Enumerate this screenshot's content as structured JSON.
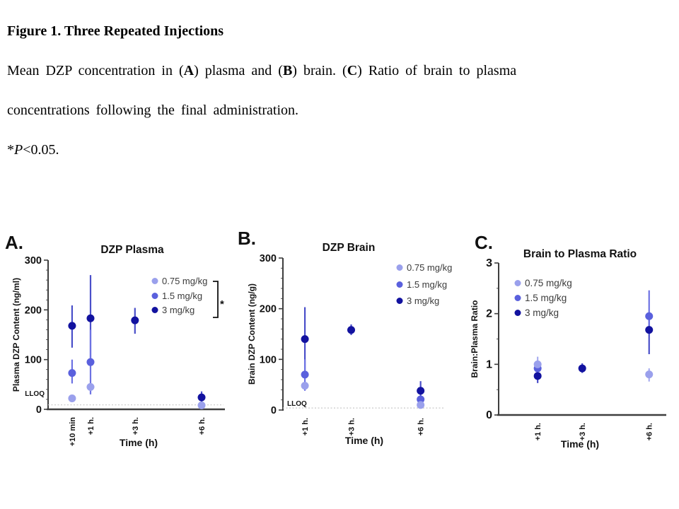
{
  "caption": {
    "lines": [
      {
        "segments": [
          {
            "t": "Figure 1. Three Repeated Injections",
            "b": true
          }
        ]
      },
      {
        "segments": [
          {
            "t": "Mean DZP concentration in ("
          },
          {
            "t": "A",
            "b": true
          },
          {
            "t": ") plasma and ("
          },
          {
            "t": "B",
            "b": true
          },
          {
            "t": ") brain. ("
          },
          {
            "t": "C",
            "b": true
          },
          {
            "t": ") Ratio of brain to plasma"
          }
        ]
      },
      {
        "segments": [
          {
            "t": "concentrations following the final administration."
          }
        ]
      },
      {
        "segments": [
          {
            "t": "*"
          },
          {
            "t": "P",
            "i": true
          },
          {
            "t": "<0.05."
          }
        ]
      }
    ]
  },
  "colors": {
    "dose_075": "#9aa0ec",
    "dose_15": "#5a60dd",
    "dose_3": "#12129f",
    "err_075": "#a8adf0",
    "err_15": "#6d72e3",
    "err_3": "#4a4fc9",
    "axis": "#3e3e3e",
    "lloq_line": "#c8c8c8",
    "text": "#111111",
    "legend_text": "#3b3b3b"
  },
  "chart_data": [
    {
      "panel_label": "A.",
      "type": "scatter",
      "title": "DZP Plasma",
      "xlabel": "Time (h)",
      "ylabel": "Plasma DZP Content (ng/ml)",
      "ylim": [
        0,
        300
      ],
      "yticks": [
        0,
        100,
        200,
        300
      ],
      "xlim_hours": [
        -0.91,
        7.05
      ],
      "categories": [
        "+10 min",
        "+1 h.",
        "+3 h.",
        "+6 h."
      ],
      "x_hours": [
        0.17,
        1,
        3,
        6
      ],
      "grid": false,
      "lloq": {
        "label": "LLOQ",
        "value": 9
      },
      "legend": {
        "position": "top-right",
        "entries": [
          "0.75 mg/kg",
          "1.5 mg/kg",
          "3 mg/kg"
        ],
        "significance": "*"
      },
      "series": [
        {
          "name": "0.75 mg/kg",
          "color_key": "dose_075",
          "err_color_key": "err_075",
          "points": [
            {
              "t": 0.17,
              "y": 22
            },
            {
              "t": 1,
              "y": 45
            },
            {
              "t": 6,
              "y": 8
            }
          ]
        },
        {
          "name": "1.5 mg/kg",
          "color_key": "dose_15",
          "err_color_key": "err_15",
          "points": [
            {
              "t": 0.17,
              "y": 73,
              "lo": 52,
              "hi": 100
            },
            {
              "t": 1,
              "y": 95,
              "lo": 30,
              "hi": 160
            }
          ]
        },
        {
          "name": "3 mg/kg",
          "color_key": "dose_3",
          "err_color_key": "err_3",
          "points": [
            {
              "t": 0.17,
              "y": 168,
              "lo": 124,
              "hi": 209
            },
            {
              "t": 1,
              "y": 183,
              "lo": 100,
              "hi": 270
            },
            {
              "t": 3,
              "y": 179,
              "lo": 152,
              "hi": 204
            },
            {
              "t": 6,
              "y": 24,
              "lo": 12,
              "hi": 36
            }
          ]
        }
      ]
    },
    {
      "panel_label": "B.",
      "type": "scatter",
      "title": "DZP Brain",
      "xlabel": "Time (h)",
      "ylabel": "Brain DZP Content (ng/g)",
      "ylim": [
        0,
        300
      ],
      "yticks": [
        0,
        100,
        200,
        300
      ],
      "xlim_hours": [
        0.05,
        7.08
      ],
      "categories": [
        "+1 h.",
        "+3 h.",
        "+6 h."
      ],
      "x_hours": [
        1,
        3,
        6
      ],
      "grid": false,
      "lloq": {
        "label": "LLOQ",
        "value": 4
      },
      "legend": {
        "position": "top-right",
        "entries": [
          "0.75 mg/kg",
          "1.5 mg/kg",
          "3 mg/kg"
        ],
        "significance": ""
      },
      "series": [
        {
          "name": "0.75 mg/kg",
          "color_key": "dose_075",
          "err_color_key": "err_075",
          "points": [
            {
              "t": 1,
              "y": 48
            },
            {
              "t": 6,
              "y": 10
            }
          ]
        },
        {
          "name": "1.5 mg/kg",
          "color_key": "dose_15",
          "err_color_key": "err_15",
          "points": [
            {
              "t": 1,
              "y": 70,
              "lo": 38,
              "hi": 100
            },
            {
              "t": 6,
              "y": 21
            }
          ]
        },
        {
          "name": "3 mg/kg",
          "color_key": "dose_3",
          "err_color_key": "err_3",
          "points": [
            {
              "t": 1,
              "y": 140,
              "lo": 65,
              "hi": 203
            },
            {
              "t": 3,
              "y": 158,
              "lo": 148,
              "hi": 169
            },
            {
              "t": 6,
              "y": 38,
              "lo": 28,
              "hi": 57
            }
          ]
        }
      ]
    },
    {
      "panel_label": "C.",
      "type": "scatter",
      "title": "Brain to Plasma Ratio",
      "xlabel": "Time (h)",
      "ylabel": "Brain:Plasma Ratio",
      "ylim": [
        0,
        3
      ],
      "yticks": [
        0,
        1,
        2,
        3
      ],
      "xlim_hours": [
        -0.75,
        6.77
      ],
      "categories": [
        "+1 h.",
        "+3 h.",
        "+6 h."
      ],
      "x_hours": [
        1,
        3,
        6
      ],
      "grid": false,
      "lloq": null,
      "legend": {
        "position": "top-left",
        "entries": [
          "0.75 mg/kg",
          "1.5 mg/kg",
          "3 mg/kg"
        ],
        "significance": ""
      },
      "series": [
        {
          "name": "0.75 mg/kg",
          "color_key": "dose_075",
          "err_color_key": "err_075",
          "points": [
            {
              "t": 1,
              "y": 1.0,
              "lo": 0.86,
              "hi": 1.15
            },
            {
              "t": 6,
              "y": 0.8,
              "lo": 0.66,
              "hi": 0.92
            }
          ]
        },
        {
          "name": "1.5 mg/kg",
          "color_key": "dose_15",
          "err_color_key": "err_15",
          "points": [
            {
              "t": 1,
              "y": 0.92
            },
            {
              "t": 6,
              "y": 1.95,
              "lo": 1.63,
              "hi": 2.46
            }
          ]
        },
        {
          "name": "3 mg/kg",
          "color_key": "dose_3",
          "err_color_key": "err_3",
          "points": [
            {
              "t": 1,
              "y": 0.77,
              "lo": 0.63,
              "hi": 0.9
            },
            {
              "t": 3,
              "y": 0.92,
              "lo": 0.83,
              "hi": 1.02
            },
            {
              "t": 6,
              "y": 1.68,
              "lo": 1.2,
              "hi": 2.03
            }
          ]
        }
      ]
    }
  ]
}
